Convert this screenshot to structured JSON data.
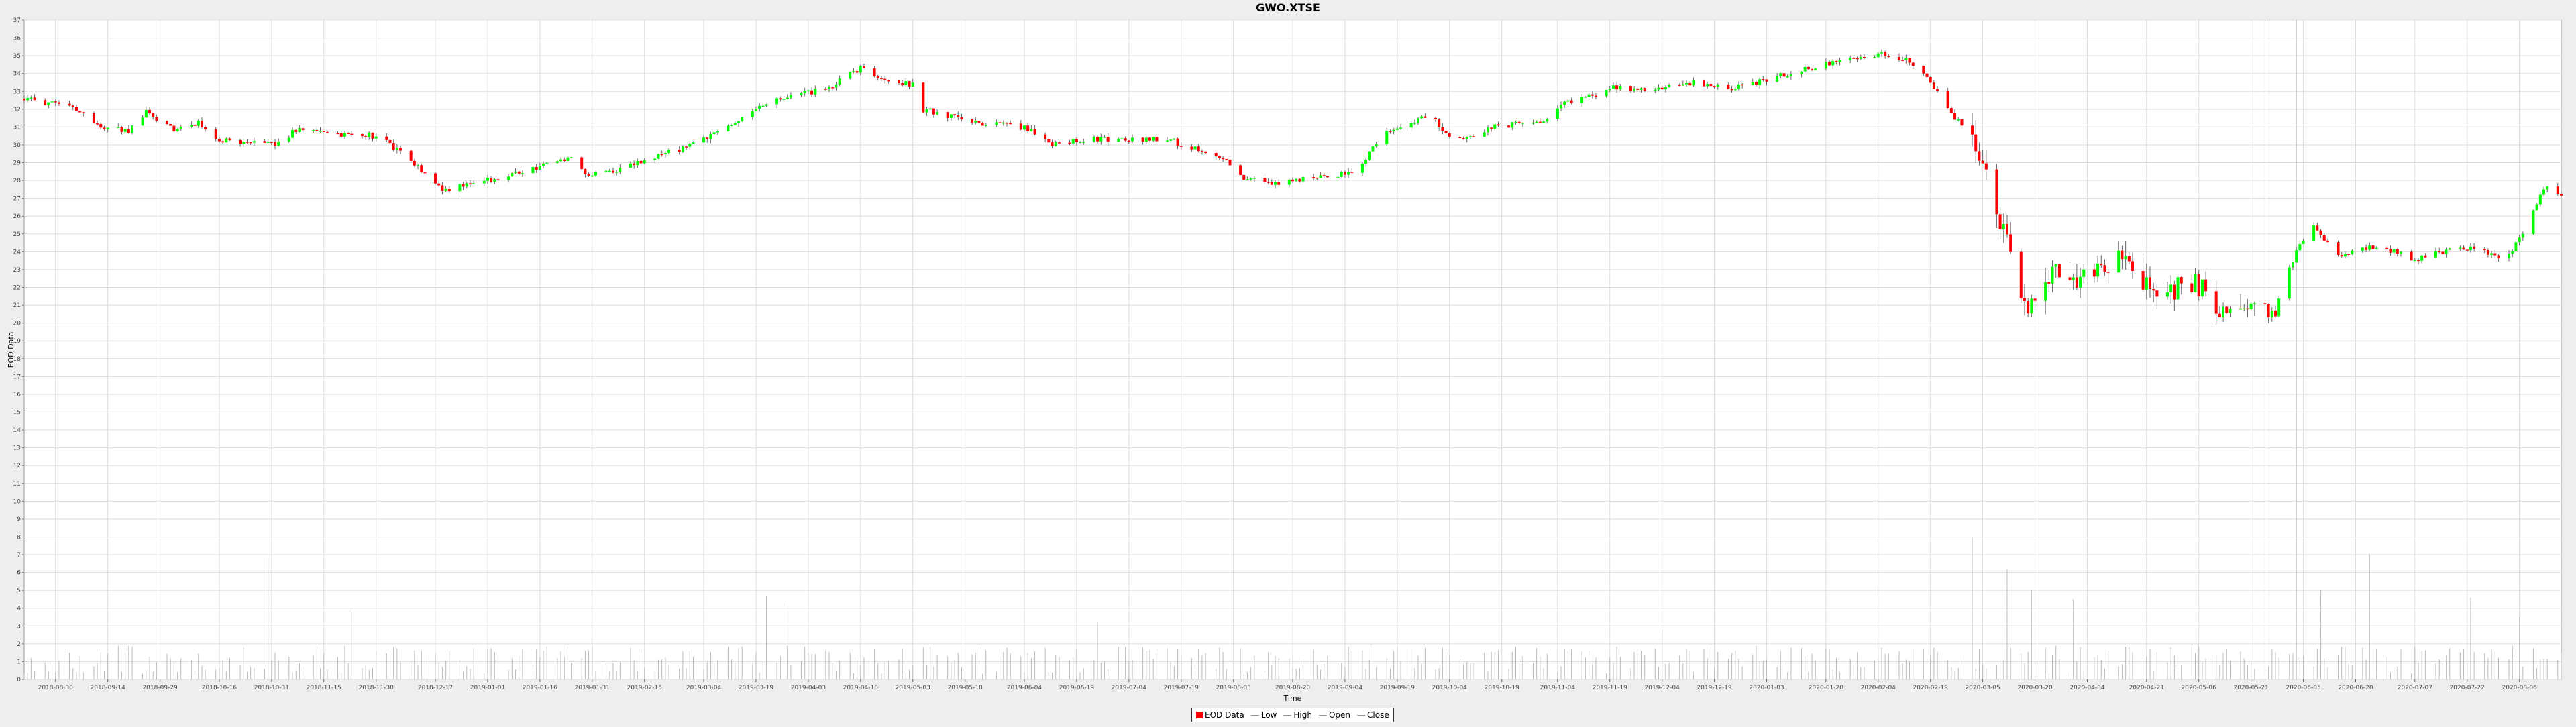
{
  "chart_data": {
    "type": "candlestick",
    "title": "GWO.XTSE",
    "xlabel": "Time",
    "ylabel": "EOD Data",
    "ylim": [
      0,
      37
    ],
    "yticks": [
      0,
      1,
      2,
      3,
      4,
      5,
      6,
      7,
      8,
      9,
      10,
      11,
      12,
      13,
      14,
      15,
      16,
      17,
      18,
      19,
      20,
      21,
      22,
      23,
      24,
      25,
      26,
      27,
      28,
      29,
      30,
      31,
      32,
      33,
      34,
      35,
      36,
      37
    ],
    "xlim": [
      "2018-08-21",
      "2020-08-18"
    ],
    "xticks": [
      "2018-08-30",
      "2018-09-14",
      "2018-09-29",
      "2018-10-16",
      "2018-10-31",
      "2018-11-15",
      "2018-11-30",
      "2018-12-17",
      "2019-01-01",
      "2019-01-16",
      "2019-01-31",
      "2019-02-15",
      "2019-03-04",
      "2019-03-19",
      "2019-04-03",
      "2019-04-18",
      "2019-05-03",
      "2019-05-18",
      "2019-06-04",
      "2019-06-19",
      "2019-07-04",
      "2019-07-19",
      "2019-08-03",
      "2019-08-20",
      "2019-09-04",
      "2019-09-19",
      "2019-10-04",
      "2019-10-19",
      "2019-11-04",
      "2019-11-19",
      "2019-12-04",
      "2019-12-19",
      "2020-01-03",
      "2020-01-20",
      "2020-02-04",
      "2020-02-19",
      "2020-03-05",
      "2020-03-20",
      "2020-04-04",
      "2020-04-21",
      "2020-05-06",
      "2020-05-21",
      "2020-06-05",
      "2020-06-20",
      "2020-07-07",
      "2020-07-22",
      "2020-08-06"
    ],
    "grid": true,
    "legend_position": "bottom-center",
    "legend": [
      "EOD Data",
      "Low",
      "High",
      "Open",
      "Close"
    ],
    "colors": {
      "up": "#00ff00",
      "down": "#ff0000",
      "wick": "#666666",
      "volume": "#bbbbbb",
      "grid": "#dddddd",
      "plot_bg": "#ffffff"
    },
    "price_path": [
      [
        "2018-08-21",
        32.6
      ],
      [
        "2018-09-05",
        32.0
      ],
      [
        "2018-09-12",
        31.0
      ],
      [
        "2018-09-20",
        30.8
      ],
      [
        "2018-09-25",
        31.8
      ],
      [
        "2018-10-03",
        30.9
      ],
      [
        "2018-10-10",
        31.2
      ],
      [
        "2018-10-17",
        30.2
      ],
      [
        "2018-10-31",
        30.0
      ],
      [
        "2018-11-08",
        30.9
      ],
      [
        "2018-11-20",
        30.6
      ],
      [
        "2018-12-01",
        30.5
      ],
      [
        "2018-12-07",
        29.5
      ],
      [
        "2018-12-20",
        27.4
      ],
      [
        "2018-12-26",
        27.8
      ],
      [
        "2019-01-05",
        28.2
      ],
      [
        "2019-01-20",
        29.0
      ],
      [
        "2019-01-25",
        29.4
      ],
      [
        "2019-01-30",
        28.2
      ],
      [
        "2019-02-10",
        28.8
      ],
      [
        "2019-03-01",
        30.0
      ],
      [
        "2019-03-15",
        31.5
      ],
      [
        "2019-03-22",
        32.3
      ],
      [
        "2019-04-10",
        33.3
      ],
      [
        "2019-04-18",
        34.3
      ],
      [
        "2019-04-25",
        33.6
      ],
      [
        "2019-05-03",
        33.4
      ],
      [
        "2019-05-06",
        32.0
      ],
      [
        "2019-05-20",
        31.3
      ],
      [
        "2019-06-05",
        30.9
      ],
      [
        "2019-06-12",
        30.1
      ],
      [
        "2019-06-25",
        30.3
      ],
      [
        "2019-07-15",
        30.3
      ],
      [
        "2019-07-30",
        29.4
      ],
      [
        "2019-08-05",
        28.2
      ],
      [
        "2019-08-15",
        27.8
      ],
      [
        "2019-08-25",
        28.2
      ],
      [
        "2019-09-08",
        28.5
      ],
      [
        "2019-09-14",
        30.5
      ],
      [
        "2019-09-28",
        31.7
      ],
      [
        "2019-10-03",
        30.6
      ],
      [
        "2019-10-10",
        30.3
      ],
      [
        "2019-10-15",
        31.0
      ],
      [
        "2019-10-30",
        31.3
      ],
      [
        "2019-11-05",
        32.2
      ],
      [
        "2019-11-19",
        33.2
      ],
      [
        "2019-12-01",
        33.0
      ],
      [
        "2019-12-12",
        33.5
      ],
      [
        "2019-12-25",
        33.2
      ],
      [
        "2020-01-05",
        33.8
      ],
      [
        "2020-01-20",
        34.5
      ],
      [
        "2020-02-05",
        35.1
      ],
      [
        "2020-02-14",
        34.6
      ],
      [
        "2020-02-21",
        33.0
      ],
      [
        "2020-02-28",
        31.0
      ],
      [
        "2020-03-05",
        29.0
      ],
      [
        "2020-03-11",
        25.0
      ],
      [
        "2020-03-18",
        20.5
      ],
      [
        "2020-03-25",
        23.0
      ],
      [
        "2020-04-05",
        22.5
      ],
      [
        "2020-04-14",
        23.5
      ],
      [
        "2020-04-25",
        21.5
      ],
      [
        "2020-05-05",
        22.3
      ],
      [
        "2020-05-14",
        20.5
      ],
      [
        "2020-05-28",
        21.0
      ],
      [
        "2020-06-03",
        24.0
      ],
      [
        "2020-06-08",
        25.5
      ],
      [
        "2020-06-15",
        23.8
      ],
      [
        "2020-06-25",
        24.3
      ],
      [
        "2020-07-07",
        23.6
      ],
      [
        "2020-07-20",
        24.3
      ],
      [
        "2020-07-31",
        23.8
      ],
      [
        "2020-08-04",
        24.0
      ],
      [
        "2020-08-14",
        27.8
      ],
      [
        "2020-08-18",
        27.2
      ]
    ],
    "volume_spikes": [
      [
        "2018-10-30",
        6.8
      ],
      [
        "2018-11-23",
        4.0
      ],
      [
        "2018-09-15",
        3.3
      ],
      [
        "2019-03-22",
        4.7
      ],
      [
        "2019-03-27",
        4.3
      ],
      [
        "2019-06-25",
        3.2
      ],
      [
        "2019-12-04",
        2.8
      ],
      [
        "2020-03-02",
        8.0
      ],
      [
        "2020-03-12",
        6.2
      ],
      [
        "2020-03-19",
        5.0
      ],
      [
        "2020-03-31",
        4.5
      ],
      [
        "2020-05-25",
        37.0
      ],
      [
        "2020-06-03",
        37.0
      ],
      [
        "2020-06-10",
        5.0
      ],
      [
        "2020-06-24",
        7.0
      ],
      [
        "2020-07-23",
        4.6
      ],
      [
        "2020-08-06",
        3.5
      ]
    ],
    "series_note": "volume bars drawn in light grey from 0 baseline"
  }
}
